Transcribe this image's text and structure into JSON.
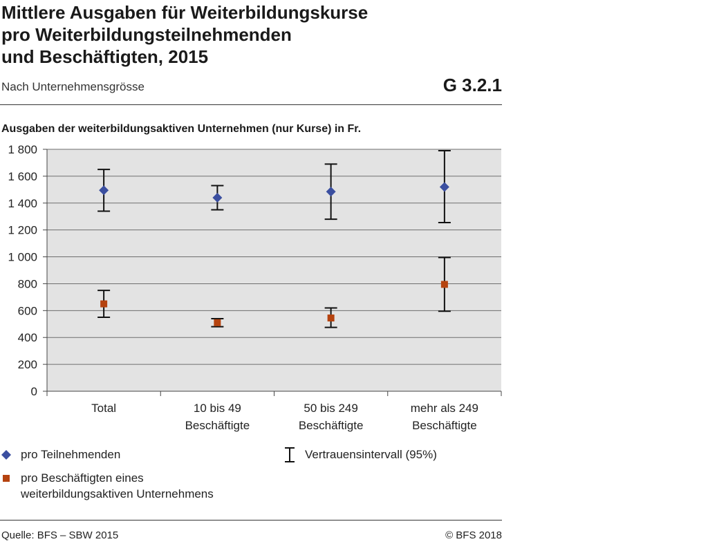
{
  "header": {
    "title_lines": [
      "Mittlere Ausgaben für Weiterbildungskurse",
      "pro Weiterbildungsteilnehmenden",
      "und Beschäftigten, 2015"
    ],
    "subtitle": "Nach Unternehmensgrösse",
    "figure_id": "G 3.2.1"
  },
  "chart_data": {
    "type": "scatter",
    "title": "Mittlere Ausgaben für Weiterbildungskurse pro Weiterbildungsteilnehmenden und Beschäftigten, 2015",
    "ylabel": "Ausgaben der weiterbildungsaktiven Unternehmen (nur Kurse) in Fr.",
    "xlabel": "",
    "ylim": [
      0,
      1800
    ],
    "yticks": [
      0,
      200,
      400,
      600,
      800,
      1000,
      1200,
      1400,
      1600,
      1800
    ],
    "ytick_labels": [
      "0",
      "200",
      "400",
      "600",
      "800",
      "1 000",
      "1 200",
      "1 400",
      "1 600",
      "1 800"
    ],
    "categories": [
      [
        "Total"
      ],
      [
        "10 bis 49",
        "Beschäftigte"
      ],
      [
        "50 bis 249",
        "Beschäftigte"
      ],
      [
        "mehr als 249",
        "Beschäftigte"
      ]
    ],
    "grid": "horizontal",
    "series": [
      {
        "name": "pro Teilnehmenden",
        "marker": "diamond",
        "color": "#3b4fa0",
        "values": [
          1495,
          1440,
          1485,
          1520
        ],
        "ci_low": [
          1340,
          1350,
          1280,
          1255
        ],
        "ci_high": [
          1650,
          1530,
          1690,
          1790
        ]
      },
      {
        "name": "pro Beschäftigten eines weiterbildungsaktiven Unternehmens",
        "marker": "square",
        "color": "#b5430f",
        "values": [
          650,
          510,
          545,
          795
        ],
        "ci_low": [
          550,
          480,
          475,
          595
        ],
        "ci_high": [
          750,
          540,
          620,
          995
        ]
      }
    ]
  },
  "legend": {
    "diamond_label": "pro Teilnehmenden",
    "square_label_lines": [
      "pro Beschäftigten eines",
      "weiterbildungsaktiven Unternehmens"
    ],
    "ci_label": "Vertrauensintervall (95%)"
  },
  "footer": {
    "source": "Quelle: BFS – SBW 2015",
    "copyright": "© BFS 2018"
  }
}
